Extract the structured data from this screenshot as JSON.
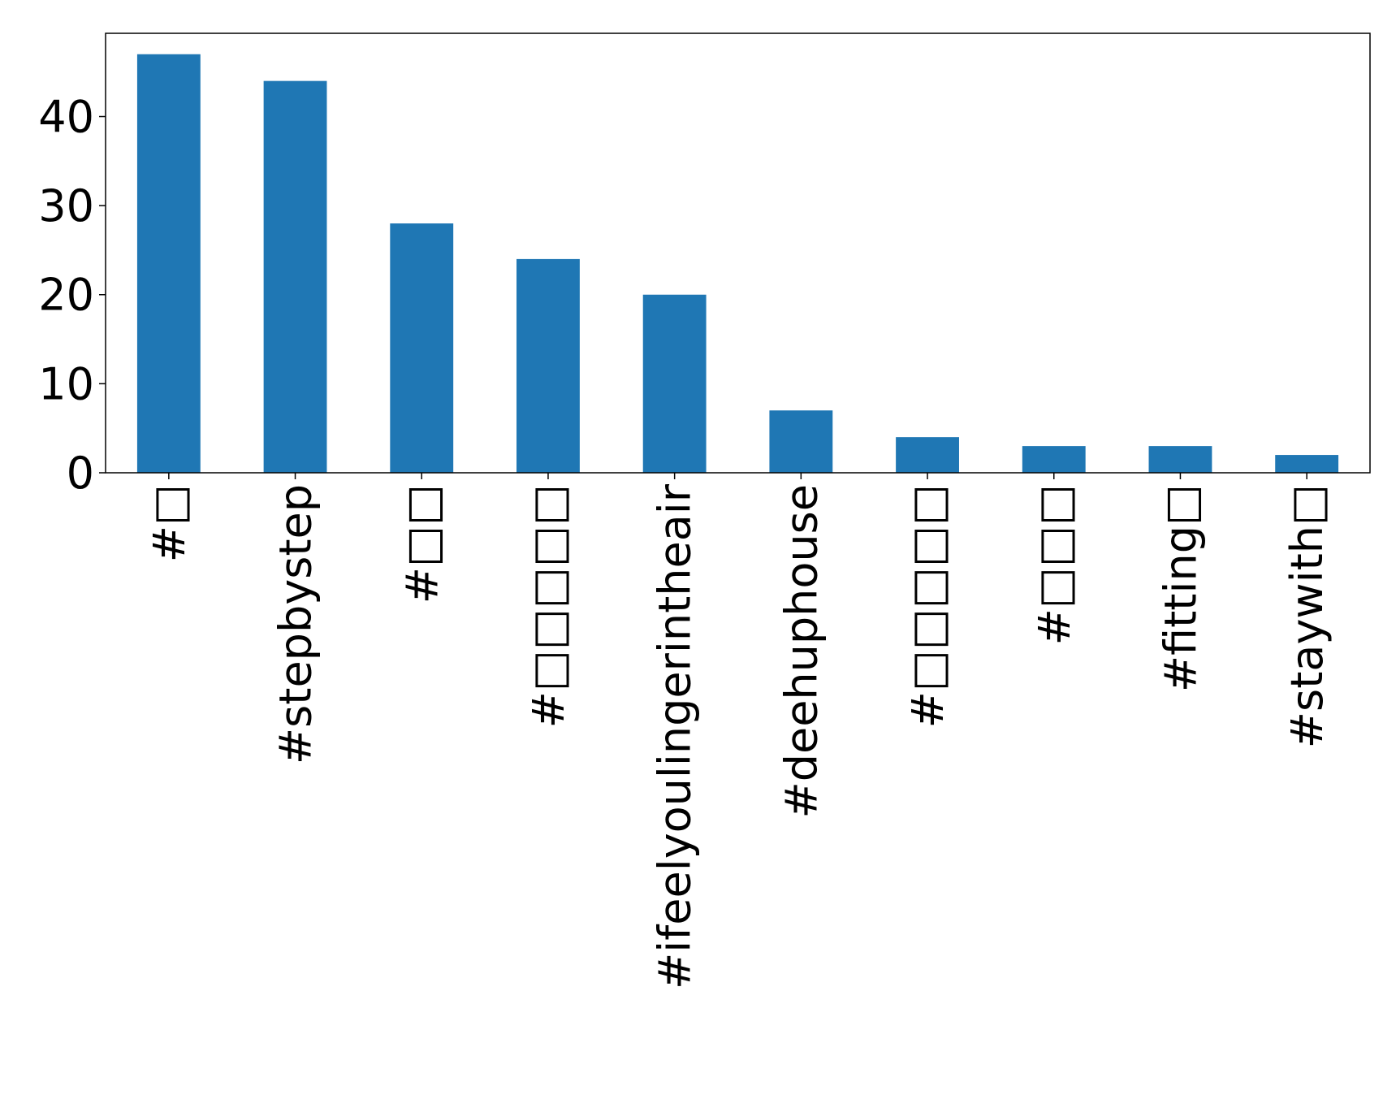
{
  "chart_data": {
    "type": "bar",
    "categories": [
      "#□",
      "#stepbystep",
      "#□□",
      "#□□□□□",
      "#ifeelyoulingerintheair",
      "#deehuphouse",
      "#□□□□□",
      "#□□□",
      "#fitting□",
      "#staywith□"
    ],
    "values": [
      47,
      44,
      28,
      24,
      20,
      7,
      4,
      3,
      3,
      2
    ],
    "color": "#1f77b4",
    "ylim": [
      0,
      49.35
    ],
    "yticks": [
      0,
      10,
      20,
      30,
      40
    ],
    "grid": false
  }
}
